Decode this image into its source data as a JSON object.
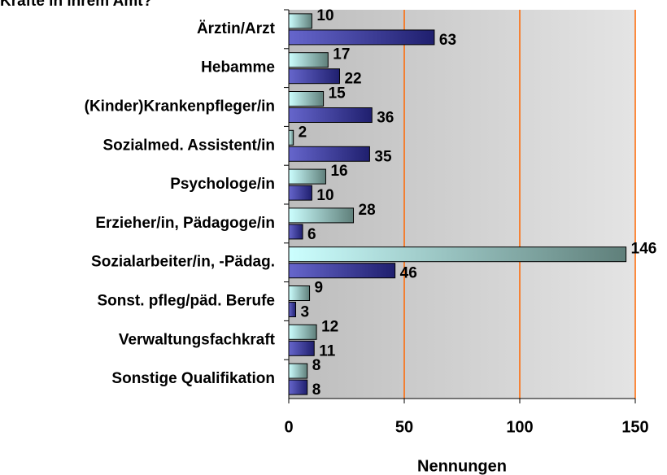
{
  "chart_data": {
    "type": "bar",
    "orientation": "horizontal",
    "title": "Kräfte in ihrem Amt?",
    "x_label": "Nennungen",
    "categories": [
      "Ärztin/Arzt",
      "Hebamme",
      "(Kinder)Krankenpfleger/in",
      "Sozialmed. Assistent/in",
      "Psychologe/in",
      "Erzieher/in, Pädagoge/in",
      "Sozialarbeiter/in, -Pädag.",
      "Sonst. pfleg/päd. Berufe",
      "Verwaltungsfachkraft",
      "Sonstige Qualifikation"
    ],
    "series": [
      {
        "color": "#ccffff",
        "values": [
          10,
          17,
          15,
          2,
          16,
          28,
          146,
          9,
          12,
          8
        ]
      },
      {
        "color": "#333399",
        "values": [
          63,
          22,
          36,
          35,
          10,
          6,
          46,
          3,
          11,
          8
        ]
      }
    ],
    "xlim": [
      0,
      150
    ],
    "xticks": [
      0,
      50,
      100,
      150
    ],
    "grid": true,
    "grid_color": "#ff6600"
  }
}
